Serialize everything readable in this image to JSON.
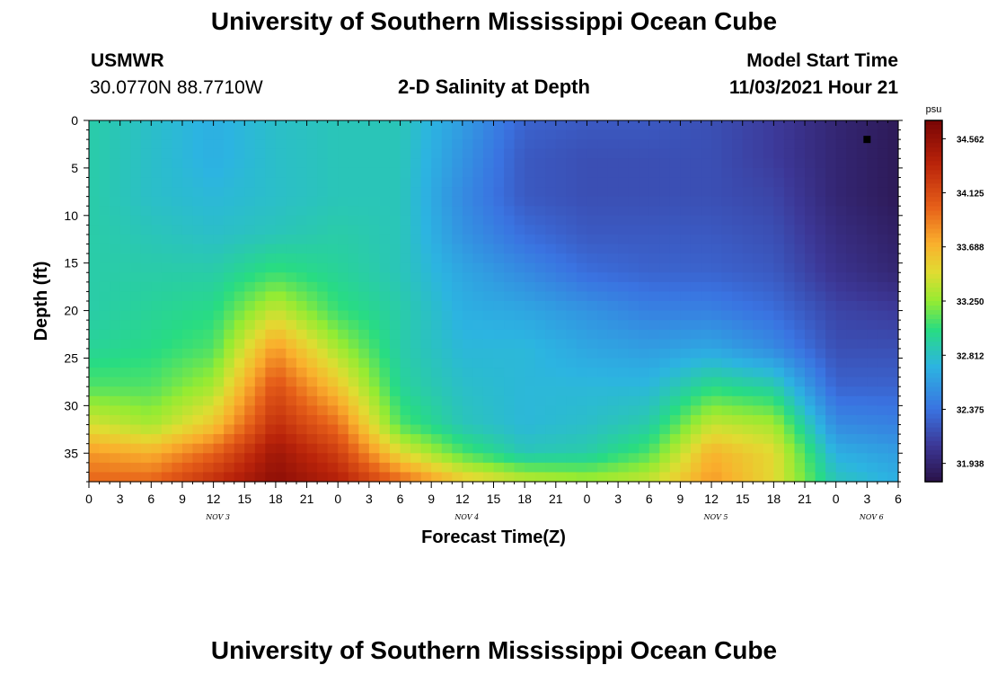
{
  "page": {
    "title": "University of Southern Mississippi Ocean Cube",
    "footer_title": "University of Southern Mississippi Ocean Cube"
  },
  "header": {
    "station": "USMWR",
    "coords": "30.0770N  88.7710W",
    "plot_title": "2-D Salinity at Depth",
    "start_label": "Model Start Time",
    "start_value": "11/03/2021 Hour 21"
  },
  "chart_data": {
    "type": "heatmap",
    "title": "2-D Salinity at Depth",
    "xlabel": "Forecast Time(Z)",
    "ylabel": "Depth (ft)",
    "x_hours": [
      0,
      3,
      6,
      9,
      12,
      15,
      18,
      21,
      24,
      27,
      30,
      33,
      36,
      39,
      42,
      45,
      48,
      51,
      54,
      57,
      60,
      63,
      66,
      69,
      72,
      75,
      78
    ],
    "x_tick_labels": [
      "0",
      "3",
      "6",
      "9",
      "12",
      "15",
      "18",
      "21",
      "0",
      "3",
      "6",
      "9",
      "12",
      "15",
      "18",
      "21",
      "0",
      "3",
      "6",
      "9",
      "12",
      "15",
      "18",
      "21",
      "0",
      "3",
      "6"
    ],
    "date_labels": [
      {
        "label": "NOV 3",
        "hour": 12
      },
      {
        "label": "NOV 4",
        "hour": 36
      },
      {
        "label": "NOV 5",
        "hour": 60
      },
      {
        "label": "NOV 6",
        "hour": 75
      }
    ],
    "ylim": [
      0,
      38
    ],
    "y_ticks": [
      0,
      5,
      10,
      15,
      20,
      25,
      30,
      35
    ],
    "colorbar": {
      "unit": "psu",
      "ticks": [
        "34.562",
        "34.125",
        "33.688",
        "33.250",
        "32.812",
        "32.375",
        "31.938"
      ],
      "min": 31.79,
      "max": 34.71
    },
    "marker": {
      "hour": 75,
      "depth": 2
    },
    "depths": [
      0,
      4,
      8,
      12,
      16,
      20,
      24,
      28,
      32,
      35,
      38
    ],
    "salinity_by_time": [
      {
        "hour": 0,
        "values": [
          32.9,
          32.9,
          32.9,
          32.9,
          32.9,
          32.9,
          32.95,
          33.1,
          33.45,
          33.8,
          34.0
        ]
      },
      {
        "hour": 6,
        "values": [
          32.8,
          32.8,
          32.8,
          32.85,
          32.9,
          32.95,
          33.0,
          33.1,
          33.3,
          33.7,
          34.0
        ]
      },
      {
        "hour": 12,
        "values": [
          32.7,
          32.7,
          32.75,
          32.8,
          32.9,
          33.0,
          33.1,
          33.3,
          33.6,
          34.0,
          34.3
        ]
      },
      {
        "hour": 18,
        "values": [
          32.8,
          32.8,
          32.8,
          32.85,
          33.05,
          33.4,
          33.8,
          34.1,
          34.3,
          34.5,
          34.6
        ]
      },
      {
        "hour": 24,
        "values": [
          32.85,
          32.85,
          32.85,
          32.9,
          32.95,
          33.05,
          33.3,
          33.6,
          33.95,
          34.2,
          34.4
        ]
      },
      {
        "hour": 30,
        "values": [
          32.85,
          32.85,
          32.85,
          32.85,
          32.85,
          32.9,
          32.9,
          32.95,
          33.1,
          33.5,
          34.0
        ]
      },
      {
        "hour": 36,
        "values": [
          32.6,
          32.55,
          32.5,
          32.55,
          32.65,
          32.7,
          32.75,
          32.8,
          32.85,
          33.1,
          33.6
        ]
      },
      {
        "hour": 42,
        "values": [
          32.3,
          32.25,
          32.25,
          32.35,
          32.5,
          32.65,
          32.75,
          32.75,
          32.75,
          32.85,
          33.4
        ]
      },
      {
        "hour": 48,
        "values": [
          32.25,
          32.2,
          32.2,
          32.25,
          32.35,
          32.55,
          32.65,
          32.75,
          32.8,
          32.9,
          33.3
        ]
      },
      {
        "hour": 54,
        "values": [
          32.25,
          32.2,
          32.2,
          32.25,
          32.3,
          32.45,
          32.6,
          32.75,
          32.9,
          33.1,
          33.4
        ]
      },
      {
        "hour": 60,
        "values": [
          32.2,
          32.2,
          32.2,
          32.25,
          32.3,
          32.45,
          32.65,
          33.0,
          33.4,
          33.7,
          33.8
        ]
      },
      {
        "hour": 66,
        "values": [
          32.1,
          32.1,
          32.15,
          32.2,
          32.25,
          32.35,
          32.5,
          32.9,
          33.3,
          33.5,
          33.5
        ]
      },
      {
        "hour": 72,
        "values": [
          31.95,
          31.95,
          31.95,
          32.0,
          32.05,
          32.15,
          32.2,
          32.3,
          32.5,
          32.7,
          32.85
        ]
      },
      {
        "hour": 78,
        "values": [
          31.85,
          31.85,
          31.85,
          31.9,
          31.95,
          32.1,
          32.2,
          32.3,
          32.45,
          32.6,
          32.7
        ]
      }
    ]
  }
}
